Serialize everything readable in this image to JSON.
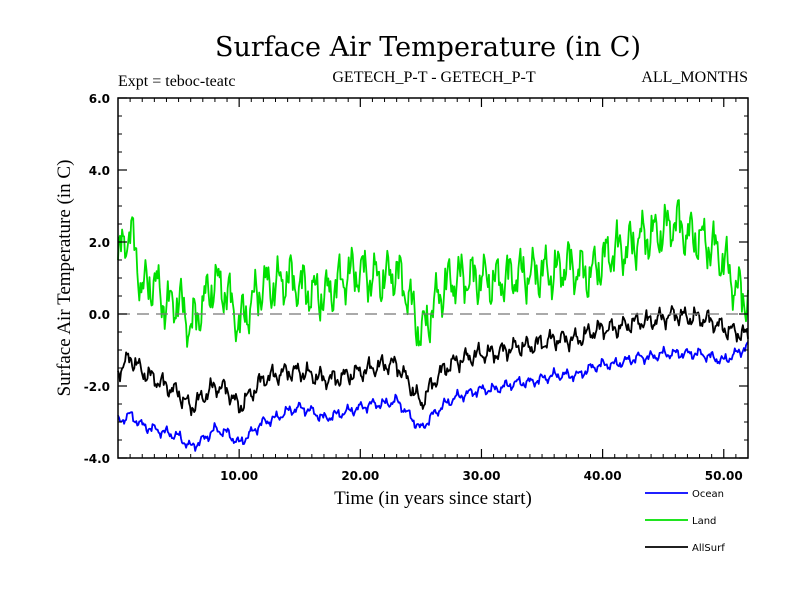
{
  "chart_data": {
    "type": "line",
    "title": "Surface Air Temperature (in C)",
    "subtitle_left": "Expt = teboc-teatc",
    "subtitle_center": "GETECH_P-T - GETECH_P-T",
    "subtitle_right": "ALL_MONTHS",
    "xlabel": "Time (in years since start)",
    "ylabel": "Surface Air Temperature (in C)",
    "xlim": [
      0,
      52
    ],
    "ylim": [
      -4.0,
      6.0
    ],
    "xticks": [
      10,
      20,
      30,
      40,
      50
    ],
    "xtick_labels": [
      "10.00",
      "20.00",
      "30.00",
      "40.00",
      "50.00"
    ],
    "yticks": [
      -4,
      -2,
      0,
      2,
      4,
      6
    ],
    "ytick_labels": [
      "-4.0",
      "-2.0",
      "0.0",
      "2.0",
      "4.0",
      "6.0"
    ],
    "reference_line": 0.0,
    "legend_position": "below-right",
    "series": [
      {
        "name": "Ocean",
        "color": "#0000ff",
        "x": [
          0,
          1,
          2,
          3,
          4,
          5,
          6,
          7,
          8,
          9,
          10,
          11,
          12,
          13,
          14,
          15,
          16,
          17,
          18,
          19,
          20,
          21,
          22,
          23,
          24,
          25,
          26,
          27,
          28,
          29,
          30,
          31,
          32,
          33,
          34,
          35,
          36,
          37,
          38,
          39,
          40,
          41,
          42,
          43,
          44,
          45,
          46,
          47,
          48,
          49,
          50,
          51,
          52
        ],
        "values": [
          -3.0,
          -2.8,
          -3.1,
          -3.2,
          -3.3,
          -3.4,
          -3.7,
          -3.5,
          -3.2,
          -3.3,
          -3.6,
          -3.3,
          -3.0,
          -2.9,
          -2.7,
          -2.6,
          -2.7,
          -2.9,
          -2.8,
          -2.7,
          -2.6,
          -2.5,
          -2.5,
          -2.4,
          -2.8,
          -3.2,
          -2.8,
          -2.5,
          -2.3,
          -2.2,
          -2.1,
          -2.1,
          -2.0,
          -1.9,
          -1.9,
          -1.8,
          -1.7,
          -1.7,
          -1.7,
          -1.5,
          -1.4,
          -1.4,
          -1.3,
          -1.2,
          -1.2,
          -1.1,
          -1.1,
          -1.1,
          -1.1,
          -1.2,
          -1.3,
          -1.1,
          -0.9
        ]
      },
      {
        "name": "Land",
        "color": "#00e000",
        "x": [
          0,
          1,
          2,
          3,
          4,
          5,
          6,
          7,
          8,
          9,
          10,
          11,
          12,
          13,
          14,
          15,
          16,
          17,
          18,
          19,
          20,
          21,
          22,
          23,
          24,
          25,
          26,
          27,
          28,
          29,
          30,
          31,
          32,
          33,
          34,
          35,
          36,
          37,
          38,
          39,
          40,
          41,
          42,
          43,
          44,
          45,
          46,
          47,
          48,
          49,
          50,
          51,
          52
        ],
        "values": [
          1.5,
          2.4,
          0.7,
          0.9,
          0.2,
          0.4,
          -0.4,
          0.3,
          0.9,
          0.6,
          -0.3,
          0.3,
          0.8,
          0.8,
          1.0,
          0.8,
          0.6,
          0.5,
          0.8,
          1.1,
          1.2,
          1.0,
          1.0,
          1.2,
          0.5,
          -0.6,
          0.2,
          0.8,
          1.0,
          1.0,
          1.0,
          0.9,
          1.0,
          1.1,
          1.1,
          1.2,
          1.1,
          1.4,
          1.2,
          1.1,
          1.5,
          1.8,
          1.8,
          2.1,
          2.2,
          2.3,
          2.6,
          2.2,
          2.1,
          1.9,
          1.5,
          0.7,
          0.4
        ]
      },
      {
        "name": "AllSurf",
        "color": "#000000",
        "x": [
          0,
          1,
          2,
          3,
          4,
          5,
          6,
          7,
          8,
          9,
          10,
          11,
          12,
          13,
          14,
          15,
          16,
          17,
          18,
          19,
          20,
          21,
          22,
          23,
          24,
          25,
          26,
          27,
          28,
          29,
          30,
          31,
          32,
          33,
          34,
          35,
          36,
          37,
          38,
          39,
          40,
          41,
          42,
          43,
          44,
          45,
          46,
          47,
          48,
          49,
          50,
          51,
          52
        ],
        "values": [
          -1.6,
          -1.2,
          -1.6,
          -1.8,
          -2.0,
          -2.2,
          -2.6,
          -2.3,
          -2.0,
          -2.1,
          -2.6,
          -2.2,
          -1.8,
          -1.7,
          -1.6,
          -1.6,
          -1.7,
          -1.8,
          -1.8,
          -1.7,
          -1.6,
          -1.5,
          -1.4,
          -1.4,
          -1.9,
          -2.5,
          -1.9,
          -1.5,
          -1.3,
          -1.2,
          -1.1,
          -1.1,
          -1.0,
          -0.9,
          -0.9,
          -0.8,
          -0.7,
          -0.7,
          -0.7,
          -0.5,
          -0.4,
          -0.4,
          -0.3,
          -0.2,
          -0.2,
          -0.1,
          0.0,
          -0.1,
          -0.1,
          -0.2,
          -0.4,
          -0.5,
          -0.6
        ]
      }
    ]
  }
}
